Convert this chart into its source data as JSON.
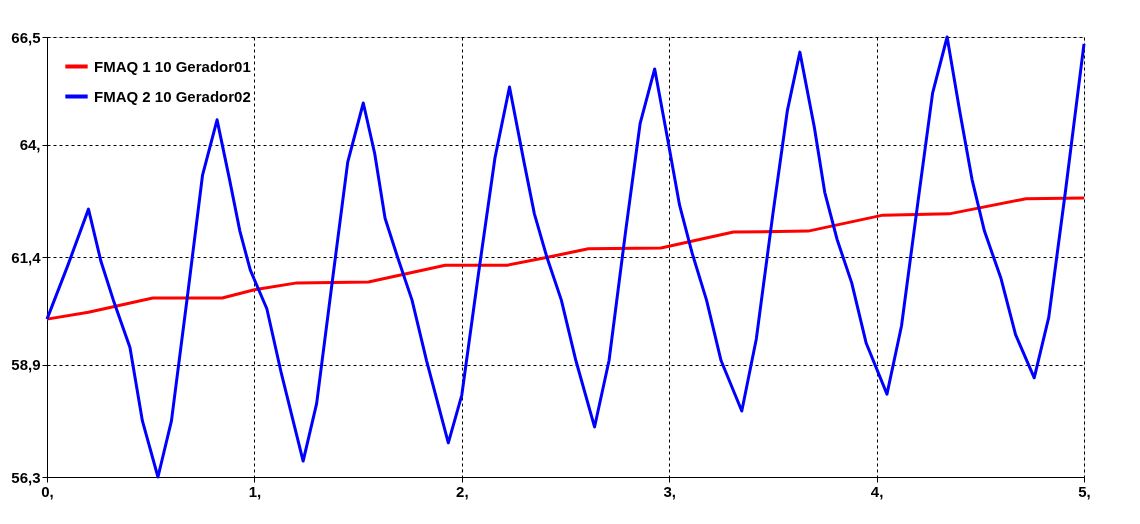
{
  "chart_data": {
    "type": "line",
    "xlim": [
      0,
      5
    ],
    "ylim": [
      56.3,
      66.5
    ],
    "xticks": [
      {
        "value": 0,
        "label": "0,"
      },
      {
        "value": 1,
        "label": "1,"
      },
      {
        "value": 2,
        "label": "2,"
      },
      {
        "value": 3,
        "label": "3,"
      },
      {
        "value": 4,
        "label": "4,"
      },
      {
        "value": 5,
        "label": "5,"
      }
    ],
    "yticks": [
      {
        "value": 56.3,
        "label": "56,3"
      },
      {
        "value": 58.9,
        "label": "58,9"
      },
      {
        "value": 61.4,
        "label": "61,4"
      },
      {
        "value": 64,
        "label": "64,"
      },
      {
        "value": 66.5,
        "label": "66,5"
      }
    ],
    "grid": true,
    "legend": "top left",
    "line_style": "solid",
    "marker": "none",
    "series": [
      {
        "name": "FMAQ       1 10 Gerador01",
        "color": "#ff0000",
        "x": [
          0,
          0.2,
          0.51,
          0.845,
          1.0,
          1.205,
          1.55,
          1.92,
          2.22,
          2.42,
          2.61,
          2.96,
          3.31,
          3.67,
          4.03,
          4.35,
          4.72,
          5.0
        ],
        "values": [
          59.96,
          60.12,
          60.45,
          60.45,
          60.64,
          60.8,
          60.82,
          61.21,
          61.21,
          61.4,
          61.59,
          61.61,
          61.98,
          62.0,
          62.37,
          62.4,
          62.75,
          62.77
        ]
      },
      {
        "name": "FMAQ       2 10 Gerador02",
        "color": "#0000ff",
        "x": [
          0,
          0.1,
          0.2,
          0.26,
          0.32,
          0.4,
          0.46,
          0.535,
          0.6,
          0.68,
          0.75,
          0.82,
          0.88,
          0.93,
          0.98,
          1.06,
          1.13,
          1.235,
          1.3,
          1.38,
          1.45,
          1.525,
          1.58,
          1.63,
          1.69,
          1.76,
          1.83,
          1.935,
          2.0,
          2.08,
          2.16,
          2.23,
          2.3,
          2.35,
          2.41,
          2.48,
          2.55,
          2.64,
          2.71,
          2.79,
          2.86,
          2.93,
          2.99,
          3.05,
          3.11,
          3.18,
          3.25,
          3.35,
          3.42,
          3.5,
          3.57,
          3.63,
          3.7,
          3.75,
          3.81,
          3.88,
          3.95,
          4.05,
          4.12,
          4.2,
          4.27,
          4.34,
          4.4,
          4.46,
          4.52,
          4.6,
          4.67,
          4.76,
          4.83,
          4.91,
          5.0
        ],
        "values": [
          59.96,
          61.2,
          62.51,
          61.3,
          60.4,
          59.3,
          57.6,
          56.3,
          57.6,
          60.6,
          63.3,
          64.58,
          63.2,
          62.0,
          61.1,
          60.2,
          58.7,
          56.67,
          58.0,
          61.0,
          63.6,
          64.97,
          63.8,
          62.3,
          61.4,
          60.4,
          59.0,
          57.09,
          58.2,
          61.0,
          63.7,
          65.34,
          63.6,
          62.4,
          61.4,
          60.4,
          59.0,
          57.46,
          59.0,
          62.0,
          64.5,
          65.76,
          64.2,
          62.6,
          61.5,
          60.4,
          59.0,
          57.83,
          59.5,
          62.4,
          64.8,
          66.15,
          64.4,
          62.9,
          61.8,
          60.8,
          59.4,
          58.22,
          59.8,
          62.7,
          65.2,
          66.5,
          64.8,
          63.2,
          62.0,
          60.9,
          59.6,
          58.6,
          60.0,
          62.9,
          66.34
        ]
      }
    ]
  }
}
